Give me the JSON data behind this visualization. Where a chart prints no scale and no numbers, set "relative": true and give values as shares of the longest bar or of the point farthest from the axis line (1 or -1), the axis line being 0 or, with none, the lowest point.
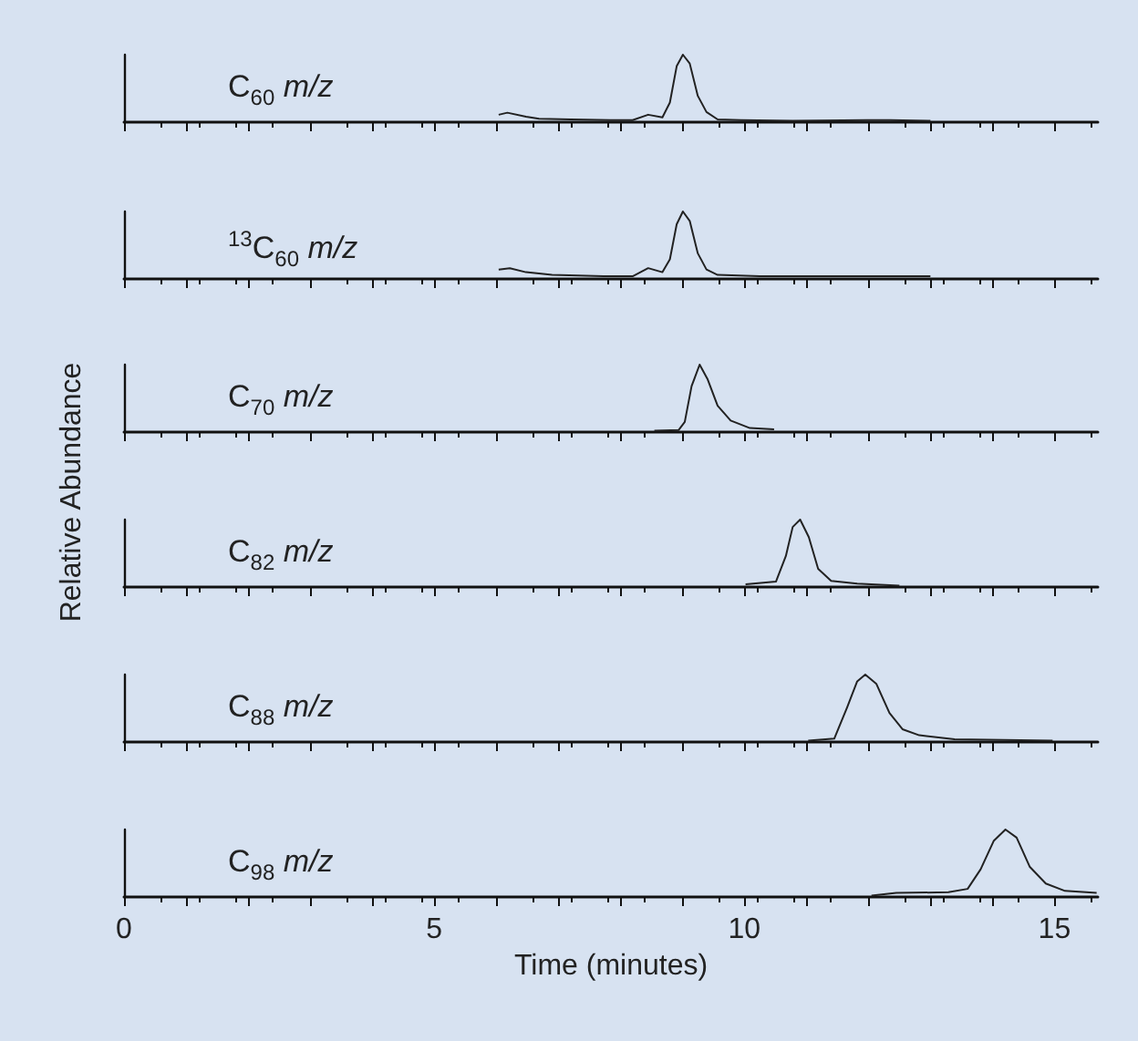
{
  "chart_data": [
    {
      "type": "line",
      "title": "C$_{60}$ m/z",
      "relative": true,
      "marker": "none",
      "grid": false,
      "tick_labels": false,
      "xlim": [
        0,
        15.7
      ],
      "xticks": [
        0,
        1,
        2,
        3,
        4,
        5,
        6,
        7,
        8,
        9,
        10,
        11,
        12,
        13,
        14,
        15
      ],
      "series": [
        {
          "color": "#222222",
          "x": [
            6.04,
            6.18,
            6.48,
            6.69,
            7.2,
            7.84,
            8.2,
            8.45,
            8.68,
            8.8,
            8.91,
            9.01,
            9.12,
            9.25,
            9.39,
            9.57,
            9.94,
            10.78,
            11.98,
            12.35,
            13.0
          ],
          "values": [
            0.11,
            0.14,
            0.08,
            0.05,
            0.04,
            0.03,
            0.03,
            0.11,
            0.07,
            0.29,
            0.83,
            1.0,
            0.87,
            0.39,
            0.15,
            0.04,
            0.03,
            0.02,
            0.03,
            0.03,
            0.02
          ]
        }
      ]
    },
    {
      "type": "line",
      "title": "$^{13}$C$_{60}$ m/z",
      "relative": true,
      "marker": "none",
      "grid": false,
      "tick_labels": false,
      "xlim": [
        0,
        15.7
      ],
      "xticks": [
        0,
        1,
        2,
        3,
        4,
        5,
        6,
        7,
        8,
        9,
        10,
        11,
        12,
        13,
        14,
        15
      ],
      "series": [
        {
          "color": "#222222",
          "x": [
            6.04,
            6.22,
            6.48,
            6.9,
            7.73,
            8.2,
            8.45,
            8.68,
            8.8,
            8.91,
            9.01,
            9.12,
            9.25,
            9.39,
            9.57,
            10.25,
            13.0
          ],
          "values": [
            0.14,
            0.16,
            0.1,
            0.06,
            0.04,
            0.04,
            0.16,
            0.1,
            0.29,
            0.81,
            1.0,
            0.86,
            0.38,
            0.14,
            0.06,
            0.04,
            0.04
          ]
        }
      ]
    },
    {
      "type": "line",
      "title": "C$_{70}$ m/z",
      "ylabel": "Relative Abundance",
      "relative": true,
      "marker": "none",
      "grid": false,
      "tick_labels": false,
      "xlim": [
        0,
        15.7
      ],
      "xticks": [
        0,
        1,
        2,
        3,
        4,
        5,
        6,
        7,
        8,
        9,
        10,
        11,
        12,
        13,
        14,
        15
      ],
      "series": [
        {
          "color": "#222222",
          "x": [
            8.55,
            8.94,
            9.04,
            9.15,
            9.28,
            9.41,
            9.57,
            9.78,
            10.09,
            10.48
          ],
          "values": [
            0.02,
            0.03,
            0.15,
            0.68,
            1.0,
            0.78,
            0.39,
            0.17,
            0.06,
            0.04
          ]
        }
      ]
    },
    {
      "type": "line",
      "title": "C$_{82}$ m/z",
      "relative": true,
      "marker": "none",
      "grid": false,
      "tick_labels": false,
      "xlim": [
        0,
        15.7
      ],
      "xticks": [
        0,
        1,
        2,
        3,
        4,
        5,
        6,
        7,
        8,
        9,
        10,
        11,
        12,
        13,
        14,
        15
      ],
      "series": [
        {
          "color": "#222222",
          "x": [
            10.02,
            10.51,
            10.67,
            10.78,
            10.9,
            11.04,
            11.19,
            11.4,
            11.82,
            12.5
          ],
          "values": [
            0.04,
            0.08,
            0.46,
            0.89,
            1.0,
            0.74,
            0.27,
            0.09,
            0.05,
            0.02
          ]
        }
      ]
    },
    {
      "type": "line",
      "title": "C$_{88}$ m/z",
      "relative": true,
      "marker": "none",
      "grid": false,
      "tick_labels": false,
      "xlim": [
        0,
        15.7
      ],
      "xticks": [
        0,
        1,
        2,
        3,
        4,
        5,
        6,
        7,
        8,
        9,
        10,
        11,
        12,
        13,
        14,
        15
      ],
      "series": [
        {
          "color": "#222222",
          "x": [
            11.03,
            11.45,
            11.66,
            11.82,
            11.95,
            12.13,
            12.34,
            12.55,
            12.82,
            13.39,
            14.97
          ],
          "values": [
            0.02,
            0.05,
            0.52,
            0.9,
            1.0,
            0.86,
            0.43,
            0.19,
            0.1,
            0.04,
            0.02
          ]
        }
      ]
    },
    {
      "type": "line",
      "title": "C$_{98}$ m/z",
      "xlabel": "Time (minutes)",
      "relative": true,
      "marker": "none",
      "grid": false,
      "tick_labels": "x",
      "xlim": [
        0,
        15.7
      ],
      "xticks": [
        0,
        {
          "value": 1,
          "label": null
        },
        {
          "value": 2,
          "label": null
        },
        {
          "value": 3,
          "label": null
        },
        {
          "value": 4,
          "label": null
        },
        5,
        {
          "value": 6,
          "label": null
        },
        {
          "value": 7,
          "label": null
        },
        {
          "value": 8,
          "label": null
        },
        {
          "value": 9,
          "label": null
        },
        10,
        {
          "value": 11,
          "label": null
        },
        {
          "value": 12,
          "label": null
        },
        {
          "value": 13,
          "label": null
        },
        {
          "value": 14,
          "label": null
        },
        15
      ],
      "series": [
        {
          "color": "#222222",
          "x": [
            12.05,
            12.45,
            13.29,
            13.6,
            13.81,
            14.02,
            14.21,
            14.39,
            14.6,
            14.86,
            15.17,
            15.68
          ],
          "values": [
            0.02,
            0.06,
            0.07,
            0.12,
            0.41,
            0.83,
            1.0,
            0.88,
            0.45,
            0.2,
            0.09,
            0.06
          ]
        }
      ]
    }
  ]
}
